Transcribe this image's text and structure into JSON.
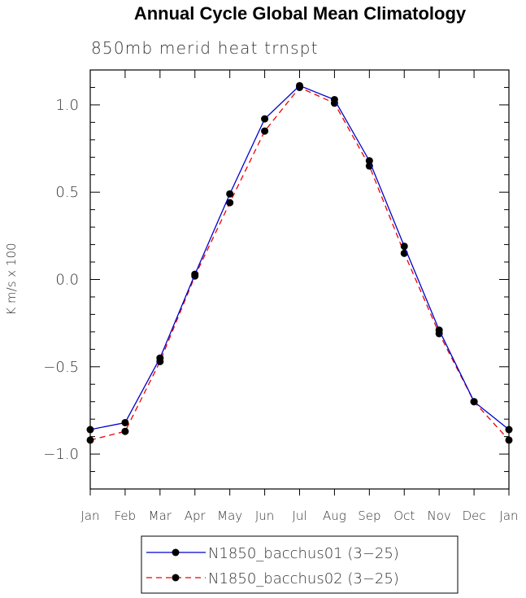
{
  "chart_data": {
    "type": "line",
    "title": "Annual Cycle Global Mean Climatology",
    "subtitle": "850mb merid heat trnspt",
    "xlabel": "",
    "ylabel": "K m/s x 100",
    "categories": [
      "Jan",
      "Feb",
      "Mar",
      "Apr",
      "May",
      "Jun",
      "Jul",
      "Aug",
      "Sep",
      "Oct",
      "Nov",
      "Dec",
      "Jan"
    ],
    "ylim": [
      -1.2,
      1.2
    ],
    "yticks": [
      -1.0,
      -0.5,
      0.0,
      0.5,
      1.0
    ],
    "ytick_labels": [
      "−1.0",
      "−0.5",
      "0.0",
      "0.5",
      "1.0"
    ],
    "grid": false,
    "legend_position": "bottom",
    "series": [
      {
        "name": "N1850_bacchus01 (3−25)",
        "color": "#0000cc",
        "line_style": "solid",
        "marker": "filled-circle",
        "values": [
          -0.86,
          -0.82,
          -0.45,
          0.03,
          0.49,
          0.92,
          1.11,
          1.03,
          0.68,
          0.19,
          -0.29,
          -0.7,
          -0.86
        ]
      },
      {
        "name": "N1850_bacchus02 (3−25)",
        "color": "#ee0000",
        "line_style": "dashed",
        "marker": "filled-circle",
        "values": [
          -0.92,
          -0.87,
          -0.47,
          0.02,
          0.44,
          0.85,
          1.1,
          1.01,
          0.65,
          0.15,
          -0.31,
          -0.7,
          -0.92
        ]
      }
    ]
  }
}
